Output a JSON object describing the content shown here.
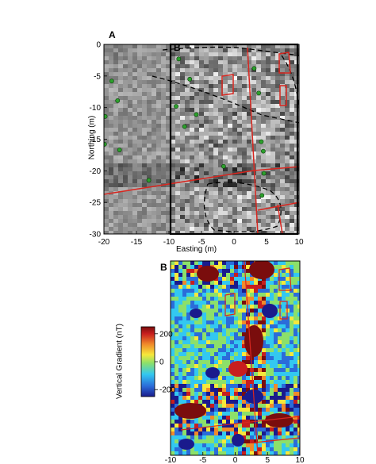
{
  "panels": {
    "a_label": "A",
    "b_inset_label": "B",
    "b_label": "B"
  },
  "colors": {
    "frame": "#000000",
    "features": "#d8261f",
    "zone_lines": "#000000",
    "markers": "#2ca02c",
    "colormap": [
      "#1a1a8c",
      "#2b6cd9",
      "#33c8f0",
      "#8ce06a",
      "#f6e83b",
      "#f08a2a",
      "#c81e1e",
      "#7a0d0d"
    ]
  },
  "chart_data": [
    {
      "type": "heatmap",
      "panel": "A",
      "title": "",
      "xlabel": "Easting (m)",
      "ylabel": "Northing (m)",
      "xlim": [
        -20,
        10
      ],
      "ylim": [
        -30,
        0
      ],
      "xticks": [
        -20,
        -15,
        -10,
        -5,
        0,
        5,
        10
      ],
      "yticks": [
        0,
        -5,
        -10,
        -15,
        -20,
        -25,
        -30
      ],
      "grid": false,
      "inset_box": {
        "label": "B",
        "x": [
          -10,
          10
        ],
        "y": [
          -30,
          0
        ]
      },
      "markers": {
        "x": [
          -18.8,
          -17.9,
          -19.8,
          -19.9,
          -17.6,
          -13.1,
          -8.5,
          -6.8,
          -8.9,
          -5.8,
          -7.6,
          -1.6,
          3.1,
          3.8,
          4.2,
          4.5,
          4.6,
          4.3
        ],
        "y": [
          -5.8,
          -8.9,
          -11.4,
          -15.8,
          -16.7,
          -21.5,
          -2.3,
          -5.5,
          -9.8,
          -11.1,
          -13.0,
          -19.3,
          -3.8,
          -7.7,
          -15.4,
          -16.9,
          -20.4,
          -23.9
        ]
      }
    },
    {
      "type": "heatmap",
      "panel": "B",
      "title": "",
      "xlim": [
        -10,
        10
      ],
      "xticks": [
        -10,
        -5,
        0,
        5,
        10
      ],
      "colorbar": {
        "label": "Vertical Gradient (nT)",
        "ticks": [
          200,
          0,
          -200
        ],
        "range": [
          -250,
          250
        ]
      }
    }
  ]
}
